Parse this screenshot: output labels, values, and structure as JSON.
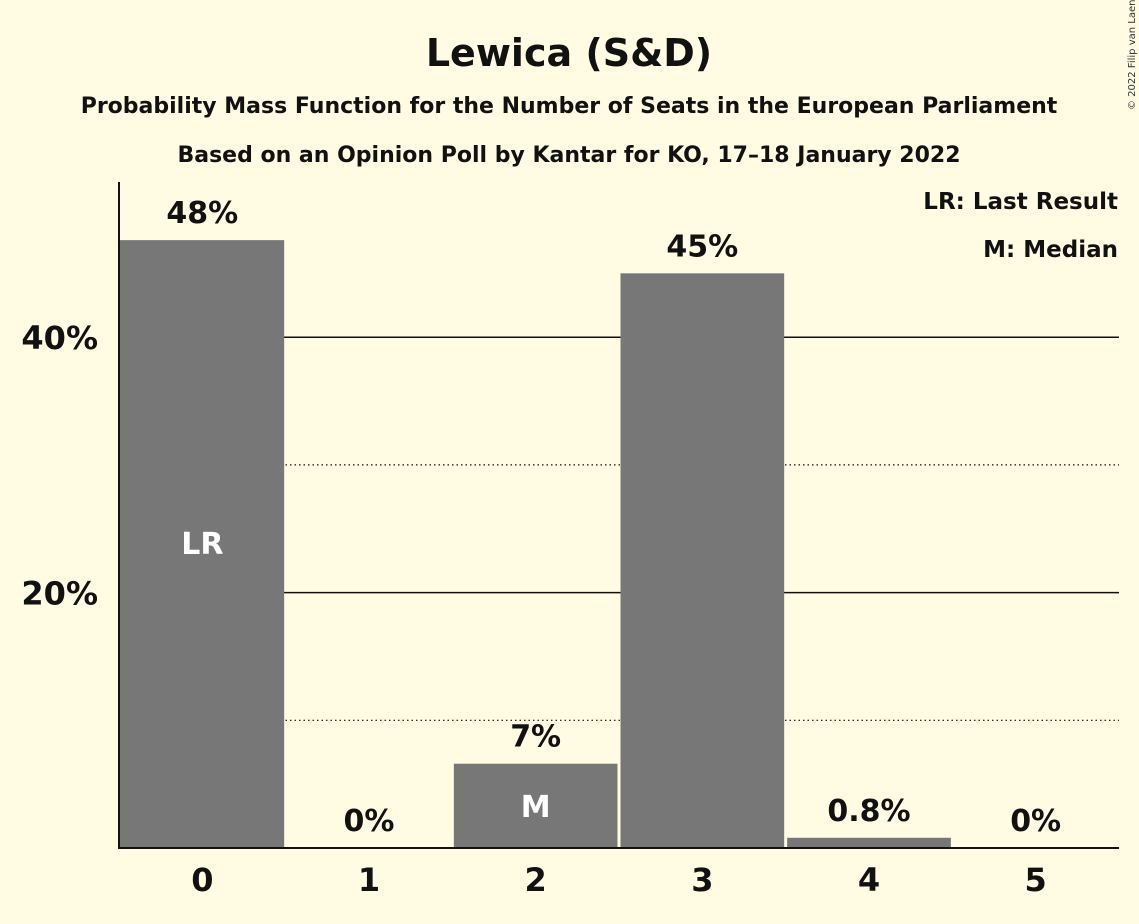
{
  "chart_data": {
    "type": "bar",
    "title": "Lewica (S&D)",
    "subtitle": "Probability Mass Function for the Number of Seats in the European Parliament",
    "subtitle2": "Based on an Opinion Poll by Kantar for KO, 17–18 January 2022",
    "categories": [
      "0",
      "1",
      "2",
      "3",
      "4",
      "5"
    ],
    "values": [
      47.6,
      0,
      6.6,
      45.0,
      0.8,
      0
    ],
    "data_labels": [
      "48%",
      "0%",
      "7%",
      "45%",
      "0.8%",
      "0%"
    ],
    "bar_markers": [
      "LR",
      "",
      "M",
      "",
      "",
      ""
    ],
    "y_ticks": [
      {
        "value": 20,
        "label": "20%"
      },
      {
        "value": 40,
        "label": "40%"
      }
    ],
    "minor_gridlines": [
      10,
      30
    ],
    "ylim": [
      0,
      52
    ],
    "legend": [
      "LR: Last Result",
      "M: Median"
    ],
    "legend_position": "top-right",
    "bar_color": "#777777",
    "background_color": "#fffce3",
    "copyright": "© 2022 Filip van Laenen"
  }
}
